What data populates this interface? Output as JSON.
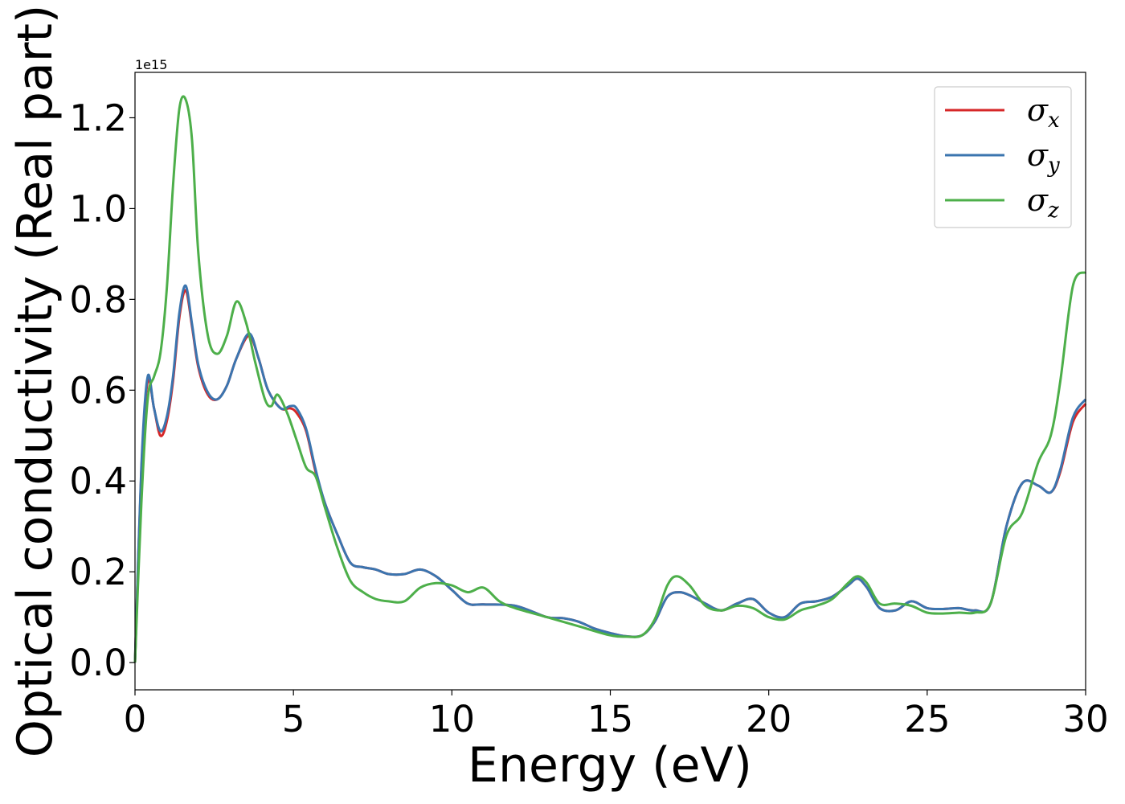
{
  "chart_data": {
    "type": "line",
    "xlabel": "Energy (eV)",
    "ylabel": "Optical conductivity (Real part)",
    "y_offset_text": "1e15",
    "xlim": [
      0,
      30
    ],
    "ylim": [
      -0.06,
      1.3
    ],
    "x_ticks": [
      0,
      5,
      10,
      15,
      20,
      25,
      30
    ],
    "x_tick_labels": [
      "0",
      "5",
      "10",
      "15",
      "20",
      "25",
      "30"
    ],
    "y_ticks": [
      0.0,
      0.2,
      0.4,
      0.6,
      0.8,
      1.0,
      1.2
    ],
    "y_tick_labels": [
      "0.0",
      "0.2",
      "0.4",
      "0.6",
      "0.8",
      "1.0",
      "1.2"
    ],
    "grid": false,
    "legend_position": "top-right",
    "series": [
      {
        "name": "σx",
        "legend_base": "σ",
        "legend_sub": "x",
        "color": "#d62728",
        "x": [
          0,
          0.2,
          0.4,
          0.6,
          0.8,
          1.0,
          1.2,
          1.4,
          1.6,
          1.8,
          2.0,
          2.3,
          2.6,
          2.9,
          3.2,
          3.6,
          3.9,
          4.2,
          4.6,
          4.9,
          5.1,
          5.4,
          5.7,
          6.0,
          6.4,
          6.8,
          7.2,
          7.6,
          8.0,
          8.5,
          9.0,
          9.5,
          10.0,
          10.5,
          11.0,
          12.0,
          13.0,
          13.5,
          14.0,
          14.5,
          15.0,
          15.5,
          16.0,
          16.4,
          16.8,
          17.2,
          17.6,
          18.0,
          18.5,
          19.0,
          19.5,
          20.0,
          20.5,
          21.0,
          21.5,
          22.0,
          22.5,
          22.8,
          23.1,
          23.5,
          24.0,
          24.5,
          25.0,
          25.5,
          26.0,
          26.5,
          27.0,
          27.5,
          28.0,
          28.5,
          28.9,
          29.2,
          29.6,
          30.0
        ],
        "values": [
          0.0,
          0.42,
          0.62,
          0.56,
          0.5,
          0.53,
          0.62,
          0.76,
          0.82,
          0.74,
          0.65,
          0.59,
          0.58,
          0.61,
          0.67,
          0.72,
          0.67,
          0.6,
          0.56,
          0.56,
          0.55,
          0.51,
          0.42,
          0.35,
          0.28,
          0.22,
          0.21,
          0.205,
          0.195,
          0.195,
          0.205,
          0.19,
          0.16,
          0.13,
          0.128,
          0.125,
          0.1,
          0.098,
          0.09,
          0.075,
          0.065,
          0.058,
          0.06,
          0.09,
          0.145,
          0.155,
          0.145,
          0.13,
          0.115,
          0.13,
          0.14,
          0.11,
          0.1,
          0.13,
          0.135,
          0.145,
          0.17,
          0.185,
          0.165,
          0.12,
          0.115,
          0.135,
          0.12,
          0.118,
          0.12,
          0.115,
          0.13,
          0.3,
          0.395,
          0.39,
          0.375,
          0.42,
          0.53,
          0.57
        ]
      },
      {
        "name": "σy",
        "legend_base": "σ",
        "legend_sub": "y",
        "color": "#3b75af",
        "x": [
          0,
          0.2,
          0.4,
          0.6,
          0.8,
          1.0,
          1.2,
          1.4,
          1.6,
          1.8,
          2.0,
          2.3,
          2.6,
          2.9,
          3.2,
          3.6,
          3.9,
          4.2,
          4.6,
          4.9,
          5.1,
          5.4,
          5.7,
          6.0,
          6.4,
          6.8,
          7.2,
          7.6,
          8.0,
          8.5,
          9.0,
          9.5,
          10.0,
          10.5,
          11.0,
          12.0,
          13.0,
          13.5,
          14.0,
          14.5,
          15.0,
          15.5,
          16.0,
          16.4,
          16.8,
          17.2,
          17.6,
          18.0,
          18.5,
          19.0,
          19.5,
          20.0,
          20.5,
          21.0,
          21.5,
          22.0,
          22.5,
          22.8,
          23.1,
          23.5,
          24.0,
          24.5,
          25.0,
          25.5,
          26.0,
          26.5,
          27.0,
          27.5,
          28.0,
          28.5,
          28.9,
          29.2,
          29.6,
          30.0
        ],
        "values": [
          0.0,
          0.43,
          0.63,
          0.56,
          0.51,
          0.54,
          0.63,
          0.77,
          0.83,
          0.745,
          0.655,
          0.595,
          0.58,
          0.61,
          0.67,
          0.725,
          0.67,
          0.6,
          0.56,
          0.565,
          0.56,
          0.515,
          0.425,
          0.35,
          0.28,
          0.22,
          0.21,
          0.205,
          0.195,
          0.195,
          0.205,
          0.19,
          0.16,
          0.13,
          0.128,
          0.125,
          0.1,
          0.098,
          0.09,
          0.075,
          0.065,
          0.058,
          0.06,
          0.09,
          0.145,
          0.155,
          0.145,
          0.13,
          0.115,
          0.13,
          0.14,
          0.11,
          0.1,
          0.13,
          0.135,
          0.145,
          0.17,
          0.185,
          0.165,
          0.12,
          0.115,
          0.135,
          0.12,
          0.118,
          0.12,
          0.115,
          0.13,
          0.3,
          0.395,
          0.39,
          0.375,
          0.425,
          0.54,
          0.58
        ]
      },
      {
        "name": "σz",
        "legend_base": "σ",
        "legend_sub": "z",
        "color": "#4daf4a",
        "x": [
          0,
          0.2,
          0.4,
          0.6,
          0.8,
          1.0,
          1.2,
          1.4,
          1.6,
          1.8,
          2.0,
          2.3,
          2.6,
          2.9,
          3.2,
          3.5,
          3.8,
          4.1,
          4.3,
          4.5,
          4.8,
          5.1,
          5.4,
          5.7,
          6.0,
          6.4,
          6.8,
          7.2,
          7.6,
          8.0,
          8.5,
          9.0,
          9.5,
          10.0,
          10.5,
          11.0,
          11.5,
          12.0,
          13.0,
          14.0,
          15.0,
          15.5,
          16.0,
          16.4,
          16.8,
          17.1,
          17.5,
          18.0,
          18.5,
          19.0,
          19.5,
          20.0,
          20.5,
          21.0,
          21.5,
          22.0,
          22.5,
          22.8,
          23.1,
          23.5,
          24.0,
          24.5,
          25.0,
          25.5,
          26.0,
          26.5,
          27.0,
          27.5,
          28.0,
          28.5,
          28.9,
          29.2,
          29.6,
          30.0
        ],
        "values": [
          0.0,
          0.35,
          0.58,
          0.63,
          0.68,
          0.82,
          1.05,
          1.22,
          1.24,
          1.15,
          0.9,
          0.72,
          0.68,
          0.72,
          0.795,
          0.75,
          0.66,
          0.58,
          0.565,
          0.59,
          0.55,
          0.49,
          0.43,
          0.41,
          0.34,
          0.25,
          0.18,
          0.155,
          0.14,
          0.135,
          0.135,
          0.165,
          0.175,
          0.17,
          0.155,
          0.165,
          0.135,
          0.12,
          0.1,
          0.08,
          0.06,
          0.057,
          0.06,
          0.095,
          0.17,
          0.19,
          0.17,
          0.125,
          0.115,
          0.125,
          0.12,
          0.1,
          0.095,
          0.115,
          0.125,
          0.14,
          0.175,
          0.19,
          0.175,
          0.13,
          0.13,
          0.125,
          0.11,
          0.108,
          0.11,
          0.11,
          0.13,
          0.28,
          0.33,
          0.44,
          0.5,
          0.62,
          0.83,
          0.86
        ]
      }
    ]
  }
}
